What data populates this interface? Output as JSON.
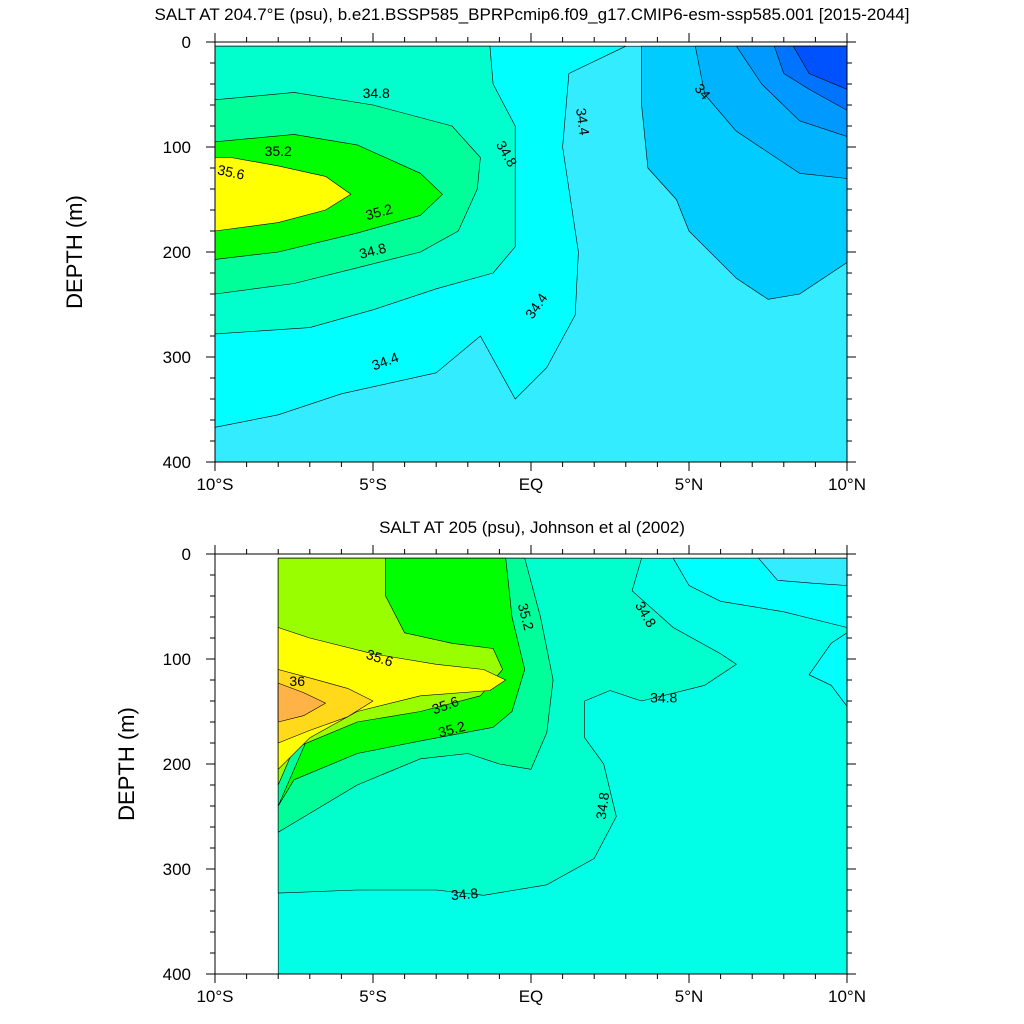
{
  "chart_data": [
    {
      "type": "contour",
      "title": "SALT AT 204.7°E (psu), b.e21.BSSP585_BPRPcmip6.f09_g17.CMIP6-esm-ssp585.001 [2015-2044]",
      "xlabel": "",
      "ylabel": "DEPTH (m)",
      "xlim": [
        -10,
        10
      ],
      "ylim": [
        400,
        0
      ],
      "x_ticks": [
        {
          "value": -10,
          "label": "10°S"
        },
        {
          "value": -5,
          "label": "5°S"
        },
        {
          "value": 0,
          "label": "EQ"
        },
        {
          "value": 5,
          "label": "5°N"
        },
        {
          "value": 10,
          "label": "10°N"
        }
      ],
      "y_ticks": [
        {
          "value": 0,
          "label": "0"
        },
        {
          "value": 100,
          "label": "100"
        },
        {
          "value": 200,
          "label": "200"
        },
        {
          "value": 300,
          "label": "300"
        },
        {
          "value": 400,
          "label": "400"
        }
      ],
      "data_lon_range": [
        -10,
        10
      ],
      "contour_interval": 0.2,
      "grid": false,
      "regions": [
        {
          "value": 34.5,
          "color": "#33ecff",
          "points": [
            [
              -10,
              4
            ],
            [
              10,
              4
            ],
            [
              10,
              400
            ],
            [
              -10,
              400
            ]
          ]
        },
        {
          "value": 34.7,
          "color": "#00ffff",
          "points": [
            [
              -10,
              4
            ],
            [
              3.0,
              4
            ],
            [
              1.2,
              30
            ],
            [
              1.0,
              100
            ],
            [
              1.5,
              200
            ],
            [
              1.4,
              260
            ],
            [
              0.5,
              310
            ],
            [
              -0.5,
              340
            ],
            [
              -1.6,
              280
            ],
            [
              -3.0,
              315
            ],
            [
              -6.0,
              335
            ],
            [
              -8.0,
              355
            ],
            [
              -10,
              367
            ]
          ]
        },
        {
          "value": 34.9,
          "color": "#00ffcc",
          "points": [
            [
              -10,
              4
            ],
            [
              -1.3,
              4
            ],
            [
              -1.2,
              40
            ],
            [
              -0.5,
              80
            ],
            [
              -0.5,
              150
            ],
            [
              -0.5,
              195
            ],
            [
              -1.2,
              220
            ],
            [
              -3.0,
              235
            ],
            [
              -5.0,
              255
            ],
            [
              -7.0,
              272
            ],
            [
              -10,
              278
            ]
          ]
        },
        {
          "value": 35.1,
          "color": "#00ff99",
          "points": [
            [
              -10,
              55
            ],
            [
              -7.5,
              48
            ],
            [
              -5.0,
              60
            ],
            [
              -2.5,
              80
            ],
            [
              -1.6,
              110
            ],
            [
              -1.7,
              140
            ],
            [
              -2.3,
              180
            ],
            [
              -3.5,
              200
            ],
            [
              -5.5,
              215
            ],
            [
              -7.5,
              230
            ],
            [
              -10,
              240
            ]
          ]
        },
        {
          "value": 35.3,
          "color": "#00ff00",
          "points": [
            [
              -10,
              95
            ],
            [
              -7.5,
              88
            ],
            [
              -5.5,
              98
            ],
            [
              -3.5,
              125
            ],
            [
              -2.8,
              145
            ],
            [
              -3.5,
              165
            ],
            [
              -5.5,
              182
            ],
            [
              -8,
              200
            ],
            [
              -10,
              207
            ]
          ]
        },
        {
          "value": 35.7,
          "color": "#ffff00",
          "points": [
            [
              -10,
              110
            ],
            [
              -9.5,
              110
            ],
            [
              -8,
              118
            ],
            [
              -6.5,
              128
            ],
            [
              -5.7,
              145
            ],
            [
              -6.5,
              160
            ],
            [
              -8,
              172
            ],
            [
              -10,
              180
            ]
          ]
        },
        {
          "value": 34.3,
          "color": "#00ccff",
          "points": [
            [
              3.5,
              4
            ],
            [
              10,
              4
            ],
            [
              10,
              210
            ],
            [
              8.5,
              240
            ],
            [
              7.5,
              245
            ],
            [
              6.5,
              225
            ],
            [
              5.0,
              180
            ],
            [
              4.6,
              150
            ],
            [
              3.7,
              120
            ],
            [
              3.5,
              60
            ]
          ]
        },
        {
          "value": 34.1,
          "color": "#00b3ff",
          "points": [
            [
              5.2,
              4
            ],
            [
              10,
              4
            ],
            [
              10,
              130
            ],
            [
              8.5,
              125
            ],
            [
              6.5,
              85
            ],
            [
              5.5,
              50
            ]
          ]
        },
        {
          "value": 33.9,
          "color": "#0099ff",
          "points": [
            [
              6.5,
              4
            ],
            [
              10,
              4
            ],
            [
              10,
              90
            ],
            [
              8.5,
              75
            ],
            [
              7.3,
              40
            ]
          ]
        },
        {
          "value": 33.7,
          "color": "#0073ff",
          "points": [
            [
              7.7,
              4
            ],
            [
              10,
              4
            ],
            [
              10,
              65
            ],
            [
              8.8,
              45
            ],
            [
              8.0,
              30
            ]
          ]
        },
        {
          "value": 33.5,
          "color": "#0052ff",
          "points": [
            [
              8.3,
              4
            ],
            [
              10,
              4
            ],
            [
              10,
              45
            ],
            [
              8.8,
              30
            ]
          ]
        }
      ],
      "contour_labels": [
        {
          "text": "34.8",
          "x": -4.9,
          "y": 50,
          "rotation": 0
        },
        {
          "text": "35.2",
          "x": -8.0,
          "y": 105,
          "rotation": 0
        },
        {
          "text": "35.6",
          "x": -9.5,
          "y": 125,
          "rotation": 12
        },
        {
          "text": "35.2",
          "x": -4.8,
          "y": 163,
          "rotation": -15
        },
        {
          "text": "34.8",
          "x": -5.0,
          "y": 200,
          "rotation": -14
        },
        {
          "text": "34.8",
          "x": -0.8,
          "y": 107,
          "rotation": 60
        },
        {
          "text": "34.4",
          "x": 1.6,
          "y": 76,
          "rotation": 82
        },
        {
          "text": "34.4",
          "x": 0.2,
          "y": 252,
          "rotation": -55
        },
        {
          "text": "34",
          "x": 5.4,
          "y": 48,
          "rotation": 50
        },
        {
          "text": "34.4",
          "x": -4.6,
          "y": 305,
          "rotation": -20
        }
      ]
    },
    {
      "type": "contour",
      "title": "SALT AT 205 (psu), Johnson et al (2002)",
      "xlabel": "",
      "ylabel": "DEPTH (m)",
      "xlim": [
        -10,
        10
      ],
      "ylim": [
        400,
        0
      ],
      "x_ticks": [
        {
          "value": -10,
          "label": "10°S"
        },
        {
          "value": -5,
          "label": "5°S"
        },
        {
          "value": 0,
          "label": "EQ"
        },
        {
          "value": 5,
          "label": "5°N"
        },
        {
          "value": 10,
          "label": "10°N"
        }
      ],
      "y_ticks": [
        {
          "value": 0,
          "label": "0"
        },
        {
          "value": 100,
          "label": "100"
        },
        {
          "value": 200,
          "label": "200"
        },
        {
          "value": 300,
          "label": "300"
        },
        {
          "value": 400,
          "label": "400"
        }
      ],
      "data_lon_range": [
        -8,
        10
      ],
      "contour_interval": 0.2,
      "grid": false,
      "regions": [
        {
          "value": 34.7,
          "color": "#00ffe6",
          "points": [
            [
              -8,
              4
            ],
            [
              10,
              4
            ],
            [
              10,
              400
            ],
            [
              -8,
              400
            ]
          ]
        },
        {
          "value": 34.5,
          "color": "#00ffff",
          "points": [
            [
              4.5,
              4
            ],
            [
              10,
              4
            ],
            [
              10,
              70
            ],
            [
              8,
              55
            ],
            [
              6,
              45
            ],
            [
              5.0,
              30
            ]
          ]
        },
        {
          "value": 34.5,
          "color": "#00ffff",
          "points": [
            [
              8.8,
              115
            ],
            [
              9.5,
              85
            ],
            [
              10,
              75
            ],
            [
              10,
              145
            ],
            [
              9.5,
              125
            ]
          ]
        },
        {
          "value": 34.3,
          "color": "#33ecff",
          "points": [
            [
              7.2,
              4
            ],
            [
              10,
              4
            ],
            [
              10,
              30
            ],
            [
              9.0,
              28
            ],
            [
              7.8,
              25
            ]
          ]
        },
        {
          "value": 34.9,
          "color": "#00ffcc",
          "points": [
            [
              -8,
              4
            ],
            [
              3.5,
              4
            ],
            [
              3.2,
              35
            ],
            [
              4.5,
              70
            ],
            [
              6.0,
              95
            ],
            [
              6.5,
              105
            ],
            [
              5.5,
              125
            ],
            [
              3.5,
              140
            ],
            [
              2.5,
              130
            ],
            [
              1.7,
              140
            ],
            [
              1.7,
              175
            ],
            [
              2.3,
              200
            ],
            [
              2.7,
              250
            ],
            [
              2.0,
              290
            ],
            [
              0.5,
              315
            ],
            [
              -1.5,
              325
            ],
            [
              -3.0,
              320
            ],
            [
              -5.5,
              320
            ],
            [
              -8,
              323
            ]
          ]
        },
        {
          "value": 35.1,
          "color": "#00ff99",
          "points": [
            [
              -8,
              4
            ],
            [
              -0.2,
              4
            ],
            [
              0.3,
              60
            ],
            [
              0.7,
              120
            ],
            [
              0.5,
              170
            ],
            [
              0.0,
              205
            ],
            [
              -1.0,
              200
            ],
            [
              -2.0,
              190
            ],
            [
              -3.5,
              195
            ],
            [
              -5.5,
              220
            ],
            [
              -8,
              265
            ]
          ]
        },
        {
          "value": 35.3,
          "color": "#00ff00",
          "points": [
            [
              -4.6,
              4
            ],
            [
              -0.8,
              4
            ],
            [
              -0.6,
              60
            ],
            [
              -0.2,
              110
            ],
            [
              -0.6,
              150
            ],
            [
              -1.2,
              165
            ],
            [
              -3.5,
              178
            ],
            [
              -5.5,
              190
            ],
            [
              -7.5,
              215
            ],
            [
              -8,
              240
            ]
          ]
        },
        {
          "value": 35.5,
          "color": "#99ff00",
          "points": [
            [
              -8,
              4
            ],
            [
              -4.6,
              4
            ],
            [
              -4.6,
              40
            ],
            [
              -4.0,
              75
            ],
            [
              -2.5,
              85
            ],
            [
              -1.2,
              90
            ],
            [
              -0.9,
              110
            ],
            [
              -1.6,
              135
            ],
            [
              -3.5,
              150
            ],
            [
              -5.5,
              160
            ],
            [
              -7.5,
              185
            ],
            [
              -8,
              220
            ]
          ]
        },
        {
          "value": 35.7,
          "color": "#ffff00",
          "points": [
            [
              -8,
              70
            ],
            [
              -7,
              80
            ],
            [
              -5,
              95
            ],
            [
              -3,
              105
            ],
            [
              -1.5,
              110
            ],
            [
              -0.8,
              120
            ],
            [
              -1.3,
              130
            ],
            [
              -3.5,
              135
            ],
            [
              -5.5,
              150
            ],
            [
              -7,
              175
            ],
            [
              -8,
              205
            ]
          ]
        },
        {
          "value": 35.9,
          "color": "#ffd91a",
          "points": [
            [
              -8,
              110
            ],
            [
              -7,
              118
            ],
            [
              -5.8,
              128
            ],
            [
              -5.0,
              140
            ],
            [
              -5.8,
              155
            ],
            [
              -7,
              168
            ],
            [
              -8,
              180
            ]
          ]
        },
        {
          "value": 36.1,
          "color": "#ffb347",
          "points": [
            [
              -8,
              123
            ],
            [
              -7.2,
              132
            ],
            [
              -6.5,
              142
            ],
            [
              -7.2,
              154
            ],
            [
              -8,
              160
            ]
          ]
        }
      ],
      "contour_labels": [
        {
          "text": "35.6",
          "x": -4.8,
          "y": 100,
          "rotation": 18
        },
        {
          "text": "36",
          "x": -7.4,
          "y": 122,
          "rotation": 0
        },
        {
          "text": "35.6",
          "x": -2.7,
          "y": 145,
          "rotation": -20
        },
        {
          "text": "35.2",
          "x": -2.5,
          "y": 168,
          "rotation": -15
        },
        {
          "text": "35.2",
          "x": -0.2,
          "y": 60,
          "rotation": 75
        },
        {
          "text": "34.8",
          "x": 3.6,
          "y": 58,
          "rotation": 60
        },
        {
          "text": "34.8",
          "x": 4.2,
          "y": 138,
          "rotation": 0
        },
        {
          "text": "34.8",
          "x": 2.3,
          "y": 240,
          "rotation": -82
        },
        {
          "text": "34.8",
          "x": -2.1,
          "y": 325,
          "rotation": -5
        }
      ]
    }
  ]
}
